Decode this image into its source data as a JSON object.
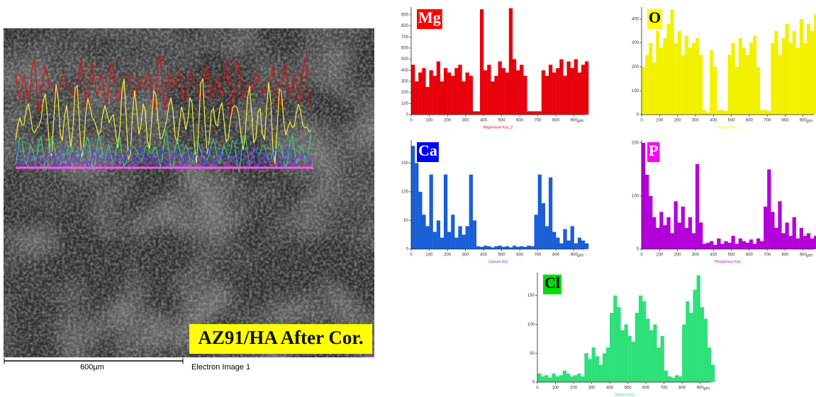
{
  "sem_image": {
    "label": "AZ91/HA After Cor.",
    "scale_bar": "600µm",
    "caption": "Electron Image 1"
  },
  "chart_data": [
    {
      "type": "bar",
      "x_label": "Magnesium Ka1_2",
      "x_unit": "µm",
      "label_fill": "#ff0000",
      "label_text_color": "#ffffff",
      "x": [
        0,
        20,
        40,
        60,
        80,
        100,
        120,
        140,
        160,
        180,
        200,
        220,
        240,
        260,
        280,
        300,
        320,
        340,
        360,
        380,
        400,
        420,
        440,
        460,
        480,
        500,
        520,
        540,
        560,
        580,
        600,
        620,
        640,
        660,
        680,
        700,
        720,
        740,
        760,
        780,
        800,
        820,
        840,
        860,
        880,
        900,
        920,
        940,
        960
      ],
      "series": [
        {
          "name": "Mg",
          "color": "#e8000b",
          "values": [
            450,
            300,
            380,
            420,
            250,
            400,
            350,
            480,
            300,
            420,
            380,
            350,
            420,
            450,
            300,
            380,
            350,
            30,
            30,
            950,
            400,
            450,
            300,
            350,
            480,
            420,
            380,
            960,
            500,
            400,
            450,
            350,
            30,
            30,
            30,
            30,
            400,
            350,
            450,
            380,
            420,
            500,
            350,
            480,
            420,
            500,
            380,
            450,
            480
          ]
        }
      ],
      "xlim": [
        0,
        960
      ],
      "xticks": [
        0,
        100,
        200,
        300,
        400,
        500,
        600,
        700,
        800,
        900
      ],
      "ylim": [
        0,
        970
      ],
      "yticks": [
        0,
        100,
        200,
        300,
        400,
        500,
        600,
        700,
        800,
        900
      ]
    },
    {
      "type": "bar",
      "x_label": "Oxygen Ka1",
      "x_unit": "µm",
      "label_fill": "#ffff00",
      "label_text_color": "#000000",
      "x": [
        0,
        20,
        40,
        60,
        80,
        100,
        120,
        140,
        160,
        180,
        200,
        220,
        240,
        260,
        280,
        300,
        320,
        340,
        360,
        380,
        400,
        420,
        440,
        460,
        480,
        500,
        520,
        540,
        560,
        580,
        600,
        620,
        640,
        660,
        680,
        700,
        720,
        740,
        760,
        780,
        800,
        820,
        840,
        860,
        880,
        900,
        920,
        940,
        960
      ],
      "series": [
        {
          "name": "O",
          "color": "#f2f200",
          "values": [
            200,
            250,
            300,
            220,
            350,
            280,
            320,
            380,
            440,
            300,
            350,
            250,
            330,
            280,
            300,
            320,
            250,
            20,
            10,
            270,
            200,
            20,
            20,
            15,
            250,
            300,
            200,
            320,
            280,
            250,
            300,
            330,
            200,
            20,
            20,
            15,
            300,
            350,
            250,
            320,
            380,
            300,
            350,
            280,
            400,
            300,
            380,
            350,
            420
          ]
        }
      ],
      "xlim": [
        0,
        960
      ],
      "xticks": [
        0,
        100,
        200,
        300,
        400,
        500,
        600,
        700,
        800,
        900
      ],
      "ylim": [
        0,
        450
      ],
      "yticks": [
        0,
        100,
        200,
        300,
        400
      ]
    },
    {
      "type": "bar",
      "x_label": "Calcium Ka1",
      "x_unit": "µm",
      "label_fill": "#0000ff",
      "label_text_color": "#ffffff",
      "x": [
        0,
        20,
        40,
        60,
        80,
        100,
        120,
        140,
        160,
        180,
        200,
        220,
        240,
        260,
        280,
        300,
        320,
        340,
        360,
        380,
        400,
        420,
        440,
        460,
        480,
        500,
        520,
        540,
        560,
        580,
        600,
        620,
        640,
        660,
        680,
        700,
        720,
        740,
        760,
        780,
        800,
        820,
        840,
        860,
        880,
        900,
        920,
        940,
        960
      ],
      "series": [
        {
          "name": "Ca",
          "color": "#1a5fd6",
          "values": [
            180,
            150,
            100,
            60,
            40,
            130,
            30,
            50,
            20,
            130,
            30,
            60,
            20,
            40,
            25,
            40,
            130,
            50,
            5,
            4,
            6,
            5,
            3,
            5,
            6,
            4,
            5,
            3,
            6,
            4,
            5,
            4,
            6,
            5,
            60,
            130,
            80,
            40,
            125,
            30,
            20,
            10,
            35,
            15,
            40,
            10,
            20,
            15,
            10
          ]
        }
      ],
      "xlim": [
        0,
        960
      ],
      "xticks": [
        0,
        100,
        200,
        300,
        400,
        500,
        600,
        700,
        800,
        900
      ],
      "ylim": [
        0,
        190
      ],
      "yticks": [
        0,
        50,
        100,
        150
      ]
    },
    {
      "type": "bar",
      "x_label": "Phosphorus Ka1",
      "x_unit": "µm",
      "label_fill": "#ff00ff",
      "label_text_color": "#ffffff",
      "x": [
        0,
        20,
        40,
        60,
        80,
        100,
        120,
        140,
        160,
        180,
        200,
        220,
        240,
        260,
        280,
        300,
        320,
        340,
        360,
        380,
        400,
        420,
        440,
        460,
        480,
        500,
        520,
        540,
        560,
        580,
        600,
        620,
        640,
        660,
        680,
        700,
        720,
        740,
        760,
        780,
        800,
        820,
        840,
        860,
        880,
        900,
        920,
        940,
        960
      ],
      "series": [
        {
          "name": "P",
          "color": "#b300d9",
          "values": [
            200,
            140,
            100,
            60,
            40,
            70,
            45,
            60,
            30,
            90,
            50,
            80,
            40,
            60,
            30,
            160,
            50,
            10,
            12,
            15,
            8,
            20,
            10,
            15,
            12,
            25,
            10,
            20,
            15,
            12,
            18,
            10,
            20,
            15,
            80,
            150,
            70,
            40,
            90,
            30,
            50,
            25,
            60,
            20,
            40,
            25,
            30,
            20,
            25
          ]
        }
      ],
      "xlim": [
        0,
        960
      ],
      "xticks": [
        0,
        100,
        200,
        300,
        400,
        500,
        600,
        700,
        800,
        900
      ],
      "ylim": [
        0,
        205
      ],
      "yticks": [
        0,
        100,
        200
      ]
    },
    {
      "type": "bar",
      "x_label": "Chlorine Ka1",
      "x_unit": "µm",
      "label_fill": "#00dd00",
      "label_text_color": "#000000",
      "x": [
        0,
        20,
        40,
        60,
        80,
        100,
        120,
        140,
        160,
        180,
        200,
        220,
        240,
        260,
        280,
        300,
        320,
        340,
        360,
        380,
        400,
        420,
        440,
        460,
        480,
        500,
        520,
        540,
        560,
        580,
        600,
        620,
        640,
        660,
        680,
        700,
        720,
        740,
        760,
        780,
        800,
        820,
        840,
        860,
        880,
        900,
        920,
        940,
        960
      ],
      "series": [
        {
          "name": "Cl",
          "color": "#2ee07a",
          "values": [
            15,
            10,
            12,
            8,
            15,
            10,
            12,
            20,
            15,
            10,
            12,
            15,
            10,
            50,
            40,
            60,
            45,
            30,
            50,
            60,
            120,
            150,
            130,
            90,
            100,
            80,
            70,
            120,
            150,
            140,
            110,
            90,
            100,
            60,
            80,
            20,
            10,
            8,
            12,
            10,
            100,
            140,
            120,
            160,
            185,
            130,
            110,
            60,
            30
          ]
        }
      ],
      "xlim": [
        0,
        960
      ],
      "xticks": [
        0,
        100,
        200,
        300,
        400,
        500,
        600,
        700,
        800,
        900
      ],
      "ylim": [
        0,
        190
      ],
      "yticks": [
        0,
        50,
        100,
        150
      ]
    }
  ]
}
